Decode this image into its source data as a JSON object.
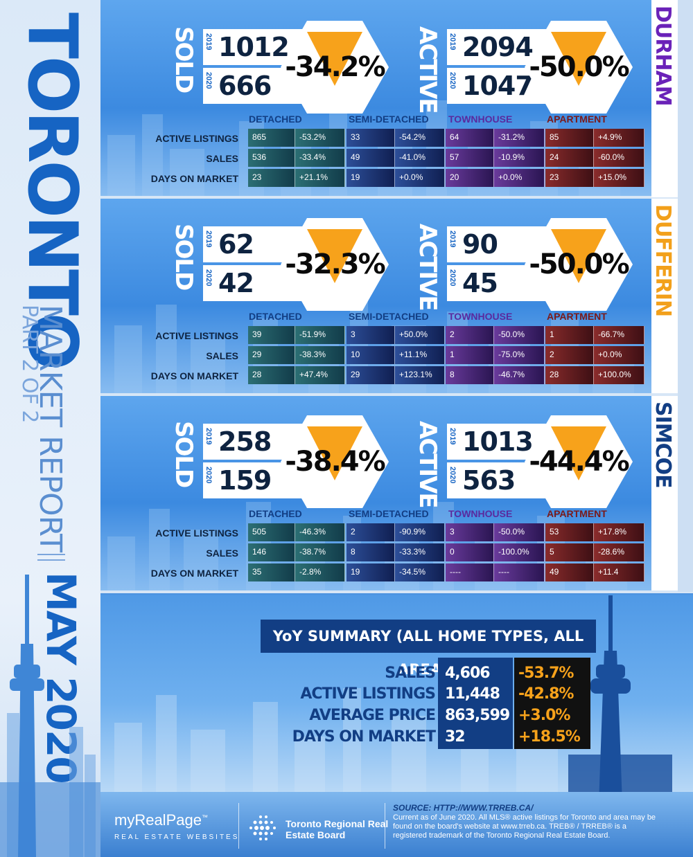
{
  "sidebar": {
    "title": "TORONTO",
    "subtitle": "MARKET REPORT",
    "part": "PART 2 OF 2",
    "date": "MAY 2020"
  },
  "labels": {
    "sold": "SOLD",
    "active": "ACTIVE",
    "year_2019": "2019",
    "year_2020": "2020",
    "col_detached": "DETACHED",
    "col_semi": "SEMI-DETACHED",
    "col_town": "TOWNHOUSE",
    "col_apt": "APARTMENT",
    "row_active": "ACTIVE LISTINGS",
    "row_sales": "SALES",
    "row_dom": "DAYS ON MARKET"
  },
  "colors": {
    "durham": "#6a22b8",
    "dufferin": "#f2a01b",
    "simcoe": "#123e84",
    "hex_triangle": "#f7a21b",
    "detached_header": "#123e84",
    "townhouse_header": "#5a2a9e",
    "apartment_header": "#7a1a1a"
  },
  "regions": [
    {
      "name": "DURHAM",
      "sold": {
        "y2019": "1012",
        "y2020": "666",
        "change": "-34.2%"
      },
      "active": {
        "y2019": "2094",
        "y2020": "1047",
        "change": "-50.0%"
      },
      "rows": [
        [
          "865",
          "-53.2%",
          "33",
          "-54.2%",
          "64",
          "-31.2%",
          "85",
          "+4.9%"
        ],
        [
          "536",
          "-33.4%",
          "49",
          "-41.0%",
          "57",
          "-10.9%",
          "24",
          "-60.0%"
        ],
        [
          "23",
          "+21.1%",
          "19",
          "+0.0%",
          "20",
          "+0.0%",
          "23",
          "+15.0%"
        ]
      ]
    },
    {
      "name": "DUFFERIN",
      "sold": {
        "y2019": "62",
        "y2020": "42",
        "change": "-32.3%"
      },
      "active": {
        "y2019": "90",
        "y2020": "45",
        "change": "-50.0%"
      },
      "rows": [
        [
          "39",
          "-51.9%",
          "3",
          "+50.0%",
          "2",
          "-50.0%",
          "1",
          "-66.7%"
        ],
        [
          "29",
          "-38.3%",
          "10",
          "+11.1%",
          "1",
          "-75.0%",
          "2",
          "+0.0%"
        ],
        [
          "28",
          "+47.4%",
          "29",
          "+123.1%",
          "8",
          "-46.7%",
          "28",
          "+100.0%"
        ]
      ]
    },
    {
      "name": "SIMCOE",
      "sold": {
        "y2019": "258",
        "y2020": "159",
        "change": "-38.4%"
      },
      "active": {
        "y2019": "1013",
        "y2020": "563",
        "change": "-44.4%"
      },
      "rows": [
        [
          "505",
          "-46.3%",
          "2",
          "-90.9%",
          "3",
          "-50.0%",
          "53",
          "+17.8%"
        ],
        [
          "146",
          "-38.7%",
          "8",
          "-33.3%",
          "0",
          "-100.0%",
          "5",
          "-28.6%"
        ],
        [
          "35",
          "-2.8%",
          "19",
          "-34.5%",
          "----",
          "----",
          "49",
          "+11.4"
        ]
      ]
    }
  ],
  "summary": {
    "title": "YoY SUMMARY (ALL HOME TYPES, ALL AREAS)",
    "items": [
      {
        "label": "SALES",
        "value": "4,606",
        "change": "-53.7%"
      },
      {
        "label": "ACTIVE LISTINGS",
        "value": "11,448",
        "change": "-42.8%"
      },
      {
        "label": "AVERAGE PRICE",
        "value": "863,599",
        "change": "+3.0%"
      },
      {
        "label": "DAYS ON MARKET",
        "value": "32",
        "change": "+18.5%"
      }
    ]
  },
  "footer": {
    "logo": "myRealPage",
    "logo_tm": "™",
    "logo_tag": "REAL ESTATE WEBSITES",
    "trreb": "Toronto Regional Real Estate Board",
    "source_title": "SOURCE: HTTP://WWW.TRREB.CA/",
    "source_text": "Current as of June 2020. All MLS® active listings for Toronto and area may be found on the board's website at www.trreb.ca. TREB® / TRREB® is a registered trademark of the Toronto Regional Real Estate Board."
  }
}
